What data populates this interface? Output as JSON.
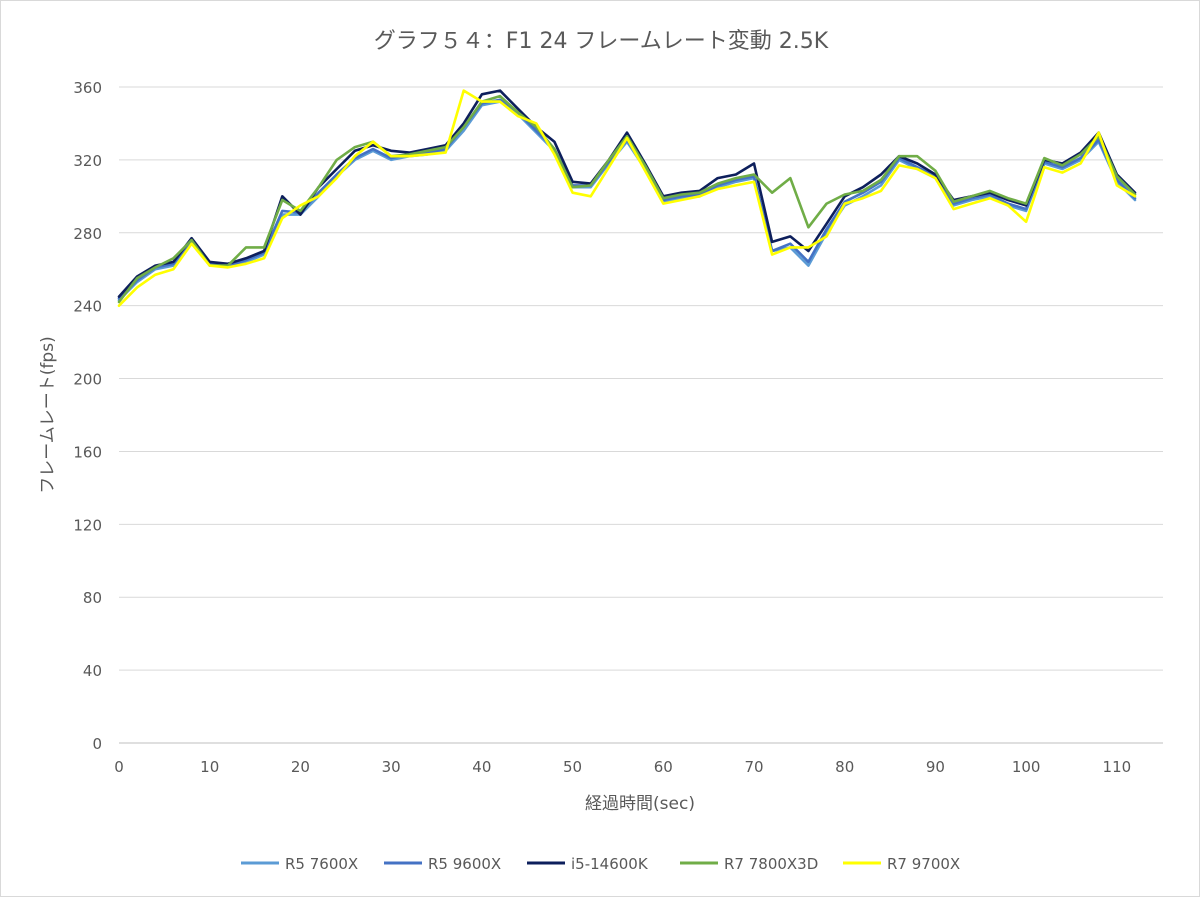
{
  "chart_data": {
    "type": "line",
    "title": "グラフ５４：F1 24 フレームレート変動 2.5K",
    "xlabel": "経過時間(sec)",
    "ylabel": "フレームレート(fps)",
    "xlim": [
      0,
      112
    ],
    "ylim": [
      0,
      360
    ],
    "x_ticks": [
      0,
      10,
      20,
      30,
      40,
      50,
      60,
      70,
      80,
      90,
      100,
      110
    ],
    "y_ticks": [
      0,
      40,
      80,
      120,
      160,
      200,
      240,
      280,
      320,
      360
    ],
    "x_tick_labels": [
      "0",
      "10",
      "20",
      "30",
      "40",
      "50",
      "60",
      "70",
      "80",
      "90",
      "100",
      "110"
    ],
    "y_tick_labels": [
      "0",
      "40",
      "80",
      "120",
      "160",
      "200",
      "240",
      "280",
      "320",
      "360"
    ],
    "grid": "horizontal",
    "legend": "bottom",
    "x": [
      0,
      2,
      4,
      6,
      8,
      10,
      12,
      14,
      16,
      18,
      20,
      22,
      24,
      26,
      28,
      30,
      32,
      34,
      36,
      38,
      40,
      42,
      44,
      46,
      48,
      50,
      52,
      54,
      56,
      58,
      60,
      62,
      64,
      66,
      68,
      70,
      72,
      74,
      76,
      78,
      80,
      82,
      84,
      86,
      88,
      90,
      92,
      94,
      96,
      98,
      100,
      102,
      104,
      106,
      108,
      110,
      112
    ],
    "series": [
      {
        "name": "R5 7600X",
        "color": "#5b9bd5",
        "values": [
          243,
          253,
          260,
          262,
          275,
          263,
          262,
          264,
          268,
          290,
          290,
          300,
          311,
          320,
          325,
          320,
          322,
          323,
          325,
          336,
          350,
          352,
          345,
          335,
          325,
          305,
          305,
          318,
          330,
          315,
          297,
          299,
          300,
          305,
          308,
          310,
          270,
          272,
          262,
          280,
          295,
          300,
          306,
          320,
          315,
          310,
          295,
          298,
          300,
          295,
          292,
          318,
          315,
          320,
          330,
          308,
          298
        ]
      },
      {
        "name": "R5 9600X",
        "color": "#4472c4",
        "values": [
          244,
          254,
          261,
          263,
          276,
          263,
          262,
          265,
          269,
          292,
          291,
          302,
          312,
          321,
          326,
          321,
          323,
          324,
          326,
          338,
          351,
          353,
          346,
          336,
          326,
          306,
          306,
          319,
          331,
          316,
          298,
          300,
          301,
          306,
          309,
          311,
          270,
          274,
          264,
          282,
          297,
          302,
          308,
          321,
          316,
          311,
          296,
          299,
          301,
          296,
          293,
          319,
          316,
          321,
          331,
          309,
          299
        ]
      },
      {
        "name": "i5-14600K",
        "color": "#0d1f5c",
        "values": [
          245,
          256,
          262,
          264,
          277,
          264,
          263,
          266,
          270,
          300,
          290,
          305,
          315,
          325,
          328,
          325,
          324,
          326,
          328,
          340,
          356,
          358,
          348,
          338,
          330,
          308,
          307,
          320,
          335,
          318,
          300,
          302,
          303,
          310,
          312,
          318,
          275,
          278,
          270,
          285,
          300,
          305,
          312,
          322,
          318,
          312,
          298,
          300,
          302,
          298,
          295,
          320,
          318,
          324,
          335,
          312,
          302
        ]
      },
      {
        "name": "R7 7800X3D",
        "color": "#70ad47",
        "values": [
          242,
          255,
          261,
          266,
          276,
          262,
          262,
          272,
          272,
          298,
          292,
          305,
          320,
          327,
          330,
          322,
          323,
          325,
          327,
          338,
          352,
          355,
          346,
          338,
          326,
          305,
          306,
          320,
          333,
          317,
          299,
          301,
          302,
          307,
          310,
          312,
          302,
          310,
          283,
          296,
          301,
          303,
          309,
          322,
          322,
          314,
          297,
          300,
          303,
          299,
          296,
          321,
          317,
          323,
          333,
          311,
          301
        ]
      },
      {
        "name": "R7 9700X",
        "color": "#ffff00",
        "values": [
          240,
          250,
          257,
          260,
          274,
          262,
          261,
          263,
          266,
          288,
          295,
          300,
          310,
          322,
          330,
          322,
          322,
          323,
          324,
          358,
          352,
          352,
          344,
          340,
          323,
          302,
          300,
          316,
          332,
          314,
          296,
          298,
          300,
          304,
          306,
          308,
          268,
          272,
          272,
          278,
          296,
          299,
          303,
          317,
          315,
          310,
          293,
          296,
          299,
          295,
          286,
          316,
          313,
          318,
          335,
          306,
          300
        ]
      }
    ]
  }
}
